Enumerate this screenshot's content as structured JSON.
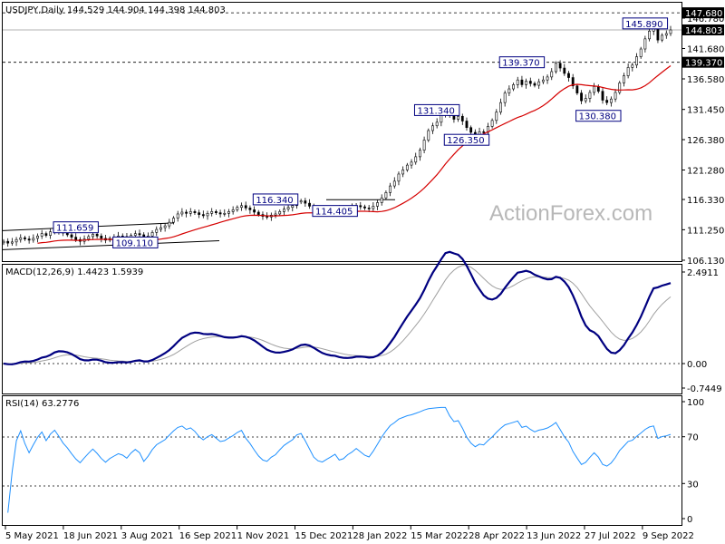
{
  "chart_data": [
    {
      "type": "candlestick",
      "symbol_header": "USDJPY,Daily  144.529 144.904 144.398 144.803",
      "ohlc": {
        "open": 144.529,
        "high": 144.904,
        "low": 144.398,
        "close": 144.803
      },
      "ylim": [
        106.13,
        149.0
      ],
      "y_ticks": [
        "106.130",
        "111.250",
        "116.330",
        "121.280",
        "126.380",
        "131.450",
        "136.580",
        "141.680",
        "146.780"
      ],
      "x_tick_labels": [
        "5 May 2021",
        "18 Jun 2021",
        "3 Aug 2021",
        "16 Sep 2021",
        "1 Nov 2021",
        "15 Dec 2021",
        "28 Jan 2022",
        "15 Mar 2022",
        "28 Apr 2022",
        "13 Jun 2022",
        "27 Jul 2022",
        "9 Sep 2022"
      ],
      "price_tags": [
        {
          "label": "147.680",
          "value": 147.68,
          "style": "dark"
        },
        {
          "label": "144.803",
          "value": 144.803,
          "style": "dark"
        },
        {
          "label": "139.370",
          "value": 139.37,
          "style": "dark"
        }
      ],
      "horizontal_levels": [
        147.68,
        139.37
      ],
      "annotations": [
        {
          "label": "111.659",
          "value": 111.659,
          "date": "Jun 2021"
        },
        {
          "label": "109.110",
          "value": 109.11,
          "date": "Aug 2021"
        },
        {
          "label": "116.340",
          "value": 116.34,
          "date": "Nov 2021"
        },
        {
          "label": "114.405",
          "value": 114.405,
          "date": "Jan 2022"
        },
        {
          "label": "131.340",
          "value": 131.34,
          "date": "Apr 2022"
        },
        {
          "label": "126.350",
          "value": 126.35,
          "date": "May 2022"
        },
        {
          "label": "139.370",
          "value": 139.37,
          "date": "Jun 2022"
        },
        {
          "label": "130.380",
          "value": 130.38,
          "date": "Aug 2022"
        },
        {
          "label": "145.890",
          "value": 145.89,
          "date": "Sep 2022"
        }
      ],
      "series": [
        {
          "kind": "close",
          "values": [
            109.3,
            109.0,
            109.2,
            109.6,
            109.9,
            109.7,
            109.5,
            109.8,
            110.2,
            110.6,
            110.3,
            110.9,
            111.4,
            111.1,
            110.7,
            110.4,
            110.0,
            109.6,
            109.3,
            109.7,
            110.1,
            110.5,
            110.2,
            109.8,
            109.5,
            109.8,
            110.0,
            110.2,
            110.1,
            109.9,
            110.3,
            110.6,
            110.4,
            109.8,
            110.2,
            110.8,
            111.3,
            111.6,
            111.9,
            112.5,
            113.2,
            113.9,
            114.2,
            114.0,
            114.3,
            114.1,
            113.8,
            113.6,
            114.0,
            114.3,
            114.1,
            113.9,
            114.0,
            114.3,
            114.6,
            115.0,
            115.3,
            114.9,
            114.6,
            114.2,
            113.8,
            113.5,
            113.4,
            113.7,
            113.9,
            114.3,
            114.7,
            115.0,
            115.3,
            115.9,
            116.1,
            115.7,
            115.2,
            114.6,
            114.3,
            114.2,
            114.4,
            114.6,
            114.8,
            114.4,
            114.5,
            114.8,
            115.0,
            115.3,
            115.1,
            114.9,
            114.8,
            115.2,
            115.8,
            116.6,
            117.5,
            118.6,
            119.4,
            120.6,
            121.3,
            122.1,
            122.6,
            123.5,
            124.6,
            126.3,
            127.9,
            128.7,
            129.3,
            130.6,
            131.3,
            130.4,
            129.8,
            130.3,
            129.5,
            128.4,
            127.6,
            127.1,
            127.7,
            127.6,
            128.6,
            129.6,
            131.0,
            132.6,
            134.2,
            134.9,
            135.6,
            136.4,
            135.6,
            136.2,
            135.8,
            135.5,
            136.1,
            136.4,
            136.9,
            137.8,
            139.2,
            138.4,
            137.5,
            136.8,
            135.4,
            134.2,
            132.9,
            133.3,
            134.3,
            135.3,
            134.5,
            133.0,
            132.6,
            133.2,
            134.3,
            135.9,
            137.1,
            138.5,
            138.9,
            140.3,
            141.6,
            143.3,
            144.6,
            145.2,
            143.1,
            143.9,
            144.2,
            144.8
          ]
        },
        {
          "kind": "ma",
          "name": "",
          "color": "#d50000"
        }
      ]
    },
    {
      "type": "line",
      "title": "MACD(12,26,9) 1.4423 1.5939",
      "ylim": [
        -0.7449,
        2.4911
      ],
      "y_ticks": [
        "2.4911",
        "0.00",
        "-0.7449"
      ],
      "series": [
        {
          "name": "MACD",
          "color": "#000080"
        },
        {
          "name": "Signal",
          "color": "#a0a0a0"
        }
      ]
    },
    {
      "type": "line",
      "title": "RSI(14) 63.2776",
      "ylim": [
        0,
        100
      ],
      "y_ticks": [
        "100",
        "70",
        "30",
        "0"
      ],
      "levels": [
        70,
        30
      ],
      "series": [
        {
          "name": "RSI",
          "color": "#1e90ff"
        }
      ]
    }
  ],
  "watermark": "ActionForex.com"
}
